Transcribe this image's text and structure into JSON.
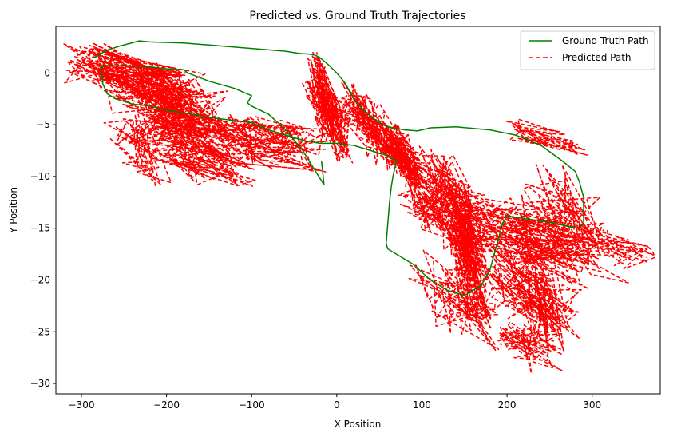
{
  "chart_data": {
    "type": "line",
    "title": "Predicted vs. Ground Truth Trajectories",
    "xlabel": "X Position",
    "ylabel": "Y Position",
    "xlim": [
      -330,
      380
    ],
    "ylim": [
      -31,
      4.5
    ],
    "xticks": [
      -300,
      -200,
      -100,
      0,
      100,
      200,
      300
    ],
    "yticks": [
      0,
      -5,
      -10,
      -15,
      -20,
      -25,
      -30
    ],
    "xtick_labels": [
      "−300",
      "−200",
      "−100",
      "0",
      "100",
      "200",
      "300"
    ],
    "ytick_labels": [
      "0",
      "−5",
      "−10",
      "−15",
      "−20",
      "−25",
      "−30"
    ],
    "grid": false,
    "legend_position": "top-right",
    "series": [
      {
        "name": "Ground Truth Path",
        "color": "#008000",
        "style": "solid",
        "x": [
          -285,
          -270,
          -255,
          -232,
          -220,
          -180,
          -150,
          -120,
          -90,
          -60,
          -45,
          -30,
          -25,
          -20,
          -10,
          0,
          10,
          20,
          30,
          40,
          50,
          60,
          80,
          95,
          110,
          140,
          180,
          210,
          240,
          265,
          280,
          285,
          290,
          290,
          285,
          270,
          255,
          240,
          215,
          200,
          195,
          190,
          180,
          170,
          150,
          130,
          110,
          90,
          70,
          60,
          58,
          60,
          62,
          64,
          66,
          70,
          60,
          40,
          20,
          0,
          -20,
          -40,
          -60,
          -80,
          -100,
          -130,
          -150,
          -170,
          -185,
          -200,
          -210,
          -220,
          -240,
          -260,
          -270,
          -275,
          -276,
          -278,
          -270,
          -250,
          -220,
          -200,
          -180,
          -175,
          -150,
          -120,
          -100,
          -105,
          -100,
          -80,
          -60,
          -40,
          -25,
          -15,
          -18
        ],
        "y": [
          1.5,
          2.2,
          2.6,
          3.1,
          3.0,
          2.9,
          2.7,
          2.5,
          2.3,
          2.1,
          1.9,
          1.8,
          1.7,
          1.5,
          0.8,
          0.0,
          -1.0,
          -2.5,
          -3.5,
          -4.2,
          -4.8,
          -5.2,
          -5.5,
          -5.6,
          -5.3,
          -5.2,
          -5.5,
          -6.0,
          -7.0,
          -8.5,
          -9.5,
          -10.5,
          -12.0,
          -14.5,
          -15.0,
          -14.8,
          -14.5,
          -14.3,
          -14.0,
          -13.8,
          -14.5,
          -16.0,
          -19.0,
          -20.5,
          -21.5,
          -21.0,
          -20.0,
          -18.5,
          -17.5,
          -17.0,
          -16.5,
          -14.5,
          -12.5,
          -11.0,
          -10.0,
          -8.5,
          -8.0,
          -7.5,
          -7.0,
          -6.8,
          -6.8,
          -6.5,
          -6.0,
          -5.5,
          -4.8,
          -4.5,
          -4.3,
          -4.0,
          -3.8,
          -3.6,
          -3.4,
          -3.2,
          -3.0,
          -2.5,
          -2.0,
          -1.0,
          0.0,
          0.5,
          0.7,
          0.7,
          0.6,
          0.4,
          0.3,
          0.0,
          -0.8,
          -1.5,
          -2.2,
          -2.9,
          -3.2,
          -4.0,
          -5.5,
          -7.5,
          -9.5,
          -10.8,
          -8.5
        ]
      },
      {
        "name": "Predicted Path",
        "color": "#ff0000",
        "style": "dashed",
        "segments": [
          {
            "start": [
              -300,
              1.0
            ],
            "end": [
              -180,
              -2.0
            ],
            "n": 170,
            "spread": [
              28,
              2.0
            ],
            "seed": 11
          },
          {
            "start": [
              -240,
              -1.5
            ],
            "end": [
              -140,
              -5.0
            ],
            "n": 140,
            "spread": [
              35,
              2.6
            ],
            "seed": 12
          },
          {
            "start": [
              -220,
              -4.0
            ],
            "end": [
              -120,
              -8.0
            ],
            "n": 120,
            "spread": [
              40,
              2.8
            ],
            "seed": 13
          },
          {
            "start": [
              -130,
              -6.0
            ],
            "end": [
              -30,
              -7.5
            ],
            "n": 110,
            "spread": [
              35,
              2.5
            ],
            "seed": 14
          },
          {
            "start": [
              -30,
              0.0
            ],
            "end": [
              10,
              -7.0
            ],
            "n": 160,
            "spread": [
              12,
              2.4
            ],
            "seed": 15
          },
          {
            "start": [
              10,
              -2.0
            ],
            "end": [
              70,
              -8.0
            ],
            "n": 120,
            "spread": [
              18,
              2.2
            ],
            "seed": 16
          },
          {
            "start": [
              55,
              -6.0
            ],
            "end": [
              95,
              -10.0
            ],
            "n": 150,
            "spread": [
              12,
              1.8
            ],
            "seed": 17
          },
          {
            "start": [
              90,
              -9.0
            ],
            "end": [
              160,
              -16.0
            ],
            "n": 150,
            "spread": [
              30,
              3.0
            ],
            "seed": 18
          },
          {
            "start": [
              140,
              -13.0
            ],
            "end": [
              170,
              -22.0
            ],
            "n": 140,
            "spread": [
              16,
              3.0
            ],
            "seed": 19
          },
          {
            "start": [
              160,
              -14.0
            ],
            "end": [
              300,
              -18.0
            ],
            "n": 150,
            "spread": [
              45,
              3.0
            ],
            "seed": 20
          },
          {
            "start": [
              200,
              -19.0
            ],
            "end": [
              270,
              -24.0
            ],
            "n": 150,
            "spread": [
              30,
              3.0
            ],
            "seed": 21
          },
          {
            "start": [
              110,
              -19.0
            ],
            "end": [
              180,
              -25.0
            ],
            "n": 60,
            "spread": [
              30,
              3.0
            ],
            "seed": 22
          },
          {
            "start": [
              200,
              -25.0
            ],
            "end": [
              250,
              -27.5
            ],
            "n": 60,
            "spread": [
              25,
              1.6
            ],
            "seed": 23
          },
          {
            "start": [
              240,
              -11.0
            ],
            "end": [
              300,
              -16.0
            ],
            "n": 60,
            "spread": [
              30,
              2.5
            ],
            "seed": 24
          },
          {
            "start": [
              300,
              -16.0
            ],
            "end": [
              365,
              -18.0
            ],
            "n": 40,
            "spread": [
              20,
              1.5
            ],
            "seed": 25
          },
          {
            "start": [
              205,
              -5.5
            ],
            "end": [
              290,
              -7.0
            ],
            "n": 40,
            "spread": [
              25,
              1.2
            ],
            "seed": 26
          },
          {
            "start": [
              -255,
              -4.5
            ],
            "end": [
              -210,
              -9.5
            ],
            "n": 40,
            "spread": [
              20,
              2.0
            ],
            "seed": 27
          },
          {
            "start": [
              -200,
              -7.0
            ],
            "end": [
              -120,
              -10.5
            ],
            "n": 50,
            "spread": [
              30,
              1.5
            ],
            "seed": 28
          }
        ]
      }
    ]
  }
}
